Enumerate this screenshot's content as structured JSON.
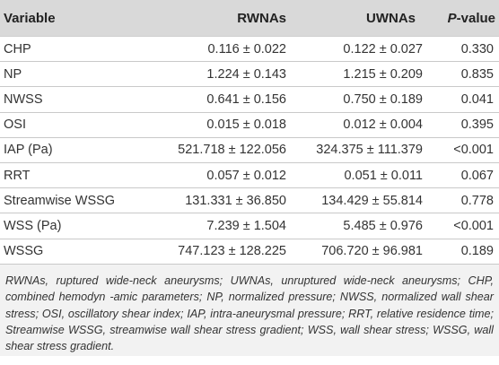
{
  "table": {
    "headers": {
      "variable": "Variable",
      "rwnas": "RWNAs",
      "uwnas": "UWNAs",
      "pvalue_italic": "P",
      "pvalue_rest": "-value"
    },
    "rows": [
      {
        "variable": "CHP",
        "rwnas": "0.116 ± 0.022",
        "uwnas": "0.122 ± 0.027",
        "p": "0.330"
      },
      {
        "variable": "NP",
        "rwnas": "1.224 ± 0.143",
        "uwnas": "1.215 ± 0.209",
        "p": "0.835"
      },
      {
        "variable": "NWSS",
        "rwnas": "0.641 ± 0.156",
        "uwnas": "0.750 ± 0.189",
        "p": "0.041"
      },
      {
        "variable": "OSI",
        "rwnas": "0.015 ± 0.018",
        "uwnas": "0.012 ± 0.004",
        "p": "0.395"
      },
      {
        "variable": "IAP (Pa)",
        "rwnas": "521.718 ± 122.056",
        "uwnas": "324.375 ± 111.379",
        "p": "<0.001"
      },
      {
        "variable": "RRT",
        "rwnas": "0.057 ± 0.012",
        "uwnas": "0.051 ± 0.011",
        "p": "0.067"
      },
      {
        "variable": "Streamwise WSSG",
        "rwnas": "131.331 ± 36.850",
        "uwnas": "134.429 ± 55.814",
        "p": "0.778"
      },
      {
        "variable": "WSS (Pa)",
        "rwnas": "7.239 ± 1.504",
        "uwnas": "5.485 ± 0.976",
        "p": "<0.001"
      },
      {
        "variable": "WSSG",
        "rwnas": "747.123 ± 128.225",
        "uwnas": "706.720 ± 96.981",
        "p": "0.189"
      }
    ]
  },
  "footnote": "RWNAs, ruptured wide-neck aneurysms; UWNAs, unruptured wide-neck aneurysms; CHP, combined hemodyn -amic parameters; NP, normalized pressure; NWSS, normalized wall shear stress; OSI, oscillatory shear index; IAP, intra-aneurysmal pressure; RRT, relative residence time; Streamwise WSSG, streamwise wall shear stress gradient; WSS, wall shear stress; WSSG, wall shear stress gradient."
}
